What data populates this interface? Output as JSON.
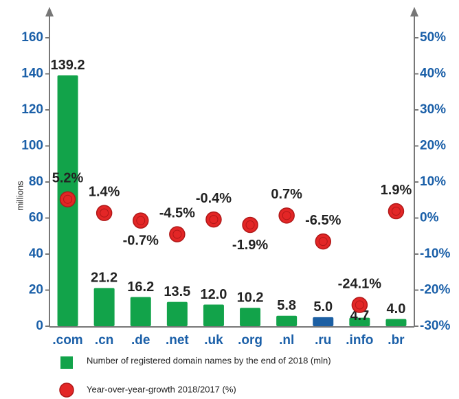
{
  "chart_data": {
    "type": "bar",
    "ylabel": "millions",
    "categories": [
      ".com",
      ".cn",
      ".de",
      ".net",
      ".uk",
      ".org",
      ".nl",
      ".ru",
      ".info",
      ".br"
    ],
    "ylim": [
      0,
      160
    ],
    "yticks": [
      0,
      20,
      40,
      60,
      80,
      100,
      120,
      140,
      160
    ],
    "y2lim": [
      -30,
      50
    ],
    "y2ticks": [
      {
        "value": -30,
        "label": "-30%"
      },
      {
        "value": -20,
        "label": "-20%"
      },
      {
        "value": -10,
        "label": "-10%"
      },
      {
        "value": 0,
        "label": "0%"
      },
      {
        "value": 10,
        "label": "10%"
      },
      {
        "value": 20,
        "label": "20%"
      },
      {
        "value": 30,
        "label": "30%"
      },
      {
        "value": 40,
        "label": "40%"
      },
      {
        "value": 50,
        "label": "50%"
      }
    ],
    "series": [
      {
        "name": "Number of registered domain names by the end of 2018 (mln)",
        "type": "bar",
        "color": "#12a34a",
        "colors": [
          "#12a34a",
          "#12a34a",
          "#12a34a",
          "#12a34a",
          "#12a34a",
          "#12a34a",
          "#12a34a",
          "#1c5fa3",
          "#12a34a",
          "#12a34a"
        ],
        "values": [
          139.2,
          21.2,
          16.2,
          13.5,
          12.0,
          10.2,
          5.8,
          5.0,
          4.7,
          4.0
        ],
        "value_labels": [
          "139.2",
          "21.2",
          "16.2",
          "13.5",
          "12.0",
          "10.2",
          "5.8",
          "5.0",
          "4.7",
          "4.0"
        ]
      },
      {
        "name": "Year-over-year-growth 2018/2017 (%)",
        "type": "scatter",
        "axis": "y2",
        "color": "#e32626",
        "values": [
          5.2,
          1.4,
          -0.7,
          -4.5,
          -0.4,
          -1.9,
          0.7,
          -6.5,
          -24.1,
          1.9
        ],
        "value_labels": [
          "5.2%",
          "1.4%",
          "-0.7%",
          "-4.5%",
          "-0.4%",
          "-1.9%",
          "0.7%",
          "-6.5%",
          "-24.1%",
          "1.9%"
        ]
      }
    ]
  }
}
